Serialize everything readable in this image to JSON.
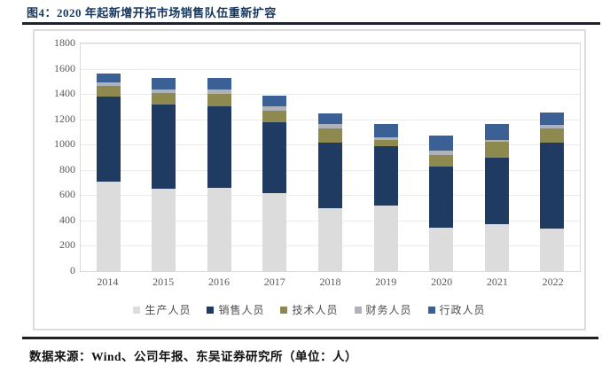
{
  "header": {
    "title": "图4：2020 年起新增开拓市场销售队伍重新扩容"
  },
  "footer": {
    "source": "数据来源：Wind、公司年报、东吴证券研究所（单位：人）"
  },
  "colors": {
    "title_navy": "#17375E",
    "rule_dark": "#1f1f1f",
    "axis_text": "#595959",
    "gridline": "#EBEBEB",
    "box_border": "#DCDCDC"
  },
  "chart_data": {
    "type": "bar",
    "stacked": true,
    "title": "2020 年起新增开拓市场销售队伍重新扩容",
    "xlabel": "",
    "ylabel": "",
    "unit": "人",
    "ylim": [
      0,
      1800
    ],
    "ytick_step": 200,
    "yticks": [
      0,
      200,
      400,
      600,
      800,
      1000,
      1200,
      1400,
      1600,
      1800
    ],
    "grid": true,
    "legend_position": "bottom",
    "categories": [
      "2014",
      "2015",
      "2016",
      "2017",
      "2018",
      "2019",
      "2020",
      "2021",
      "2022"
    ],
    "series": [
      {
        "name": "生产人员",
        "color": "#DCDCDC",
        "values": [
          710,
          650,
          655,
          615,
          500,
          520,
          340,
          370,
          335
        ]
      },
      {
        "name": "销售人员",
        "color": "#1F3B61",
        "values": [
          670,
          665,
          650,
          565,
          515,
          465,
          490,
          530,
          680
        ]
      },
      {
        "name": "技术人员",
        "color": "#8E8A4F",
        "values": [
          85,
          95,
          95,
          90,
          110,
          50,
          90,
          120,
          110
        ]
      },
      {
        "name": "财务人员",
        "color": "#AFB2B8",
        "values": [
          25,
          25,
          35,
          30,
          35,
          25,
          35,
          20,
          30
        ]
      },
      {
        "name": "行政人员",
        "color": "#3A6096",
        "values": [
          70,
          95,
          90,
          85,
          85,
          100,
          115,
          120,
          100
        ]
      }
    ],
    "totals": [
      1560,
      1530,
      1525,
      1385,
      1245,
      1160,
      1070,
      1160,
      1255
    ]
  }
}
